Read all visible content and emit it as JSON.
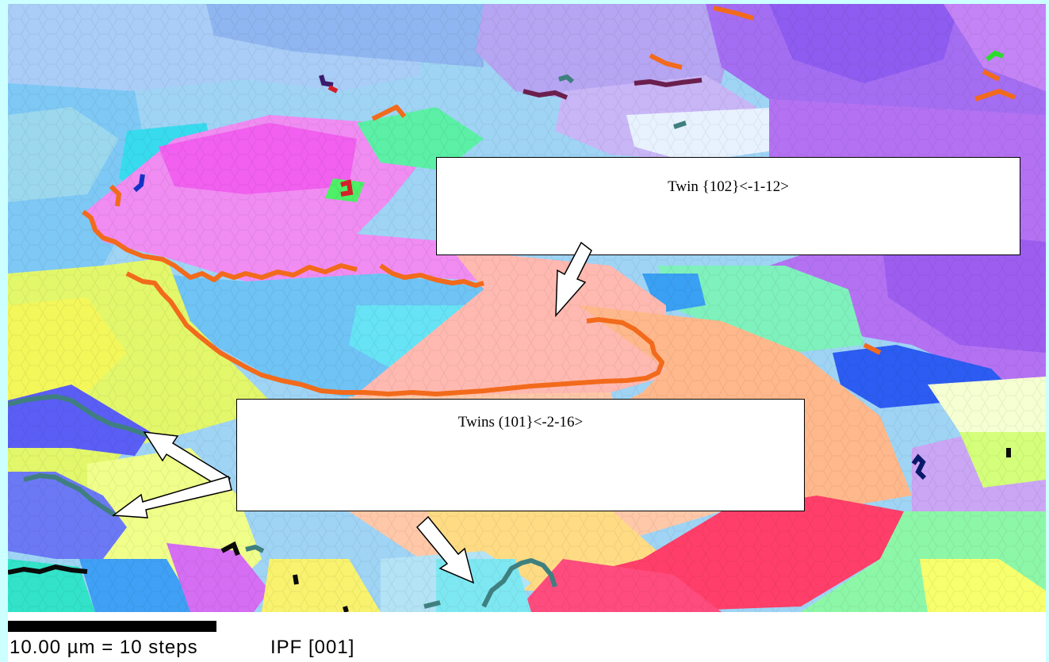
{
  "callouts": {
    "twin_102": "Twin {102}<-1-12>",
    "twins_101": "Twins (101}<-2-16>"
  },
  "scale": {
    "label": "10.00 µm = 10 steps",
    "map_label": "IPF [001]"
  },
  "colors": {
    "page_background": "#ccffff",
    "twin_102_boundary": "#f26a1b",
    "twin_101_boundary": "#3f7f7f",
    "arrow_fill": "#ffffff"
  }
}
